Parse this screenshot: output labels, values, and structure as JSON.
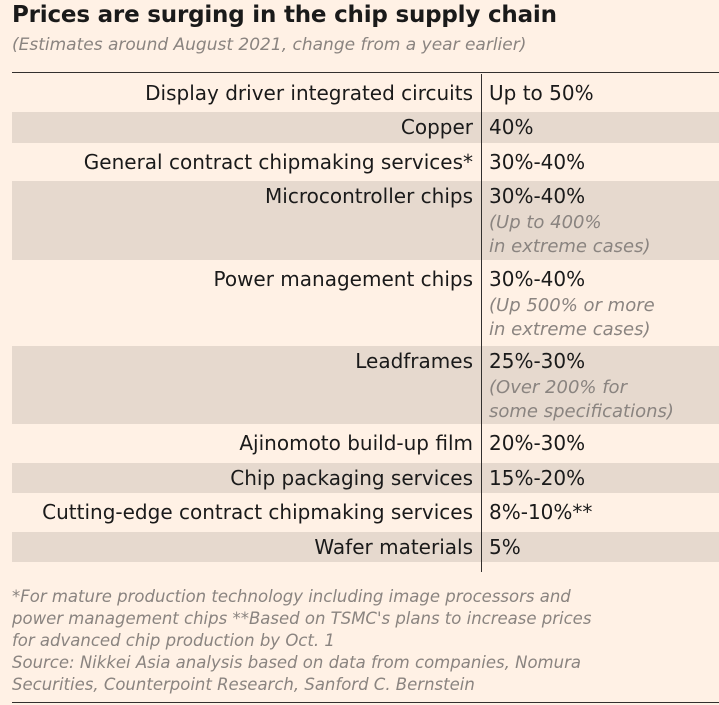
{
  "header": {
    "title": "Prices are surging in the chip supply chain",
    "subtitle": "(Estimates around August 2021, change from a year earlier)"
  },
  "chart_data": {
    "type": "table",
    "columns": [
      "",
      ""
    ],
    "rows": [
      {
        "item": "Display driver integrated circuits",
        "change": "Up to 50%",
        "note": []
      },
      {
        "item": "Copper",
        "change": "40%",
        "note": []
      },
      {
        "item": "General contract chipmaking services*",
        "change": "30%-40%",
        "note": []
      },
      {
        "item": "Microcontroller chips",
        "change": "30%-40%",
        "note": [
          "(Up to 400%",
          "in extreme cases)"
        ]
      },
      {
        "item": "Power management chips",
        "change": "30%-40%",
        "note": [
          "(Up 500% or more",
          "in extreme cases)"
        ]
      },
      {
        "item": "Leadframes",
        "change": "25%-30%",
        "note": [
          "(Over 200% for",
          "some specifications)"
        ]
      },
      {
        "item": "Ajinomoto build-up film",
        "change": "20%-30%",
        "note": []
      },
      {
        "item": "Chip packaging services",
        "change": "15%-20%",
        "note": []
      },
      {
        "item": "Cutting-edge contract chipmaking services",
        "change": "8%-10%**",
        "note": []
      },
      {
        "item": "Wafer materials",
        "change": "5%",
        "note": []
      }
    ]
  },
  "footnote": {
    "lines": [
      "*For mature production technology including image processors and",
      "power management chips  **Based on TSMC's plans to increase prices",
      "for advanced chip production by Oct. 1",
      "Source: Nikkei Asia analysis based on data from companies, Nomura",
      "Securities, Counterpoint Research, Sanford C. Bernstein"
    ]
  },
  "colors": {
    "background": "#fff1e5",
    "shaded_row": "#e6d9ce",
    "text": "#1a1a1a",
    "muted_text": "#8a8480",
    "rule": "#33302e"
  }
}
